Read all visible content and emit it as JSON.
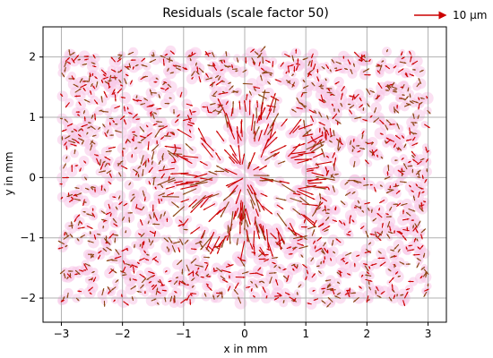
{
  "chart_data": {
    "type": "quiver",
    "title": "Residuals (scale factor 50)",
    "xlabel": "x in mm",
    "ylabel": "y in mm",
    "xlim": [
      -3.3,
      3.3
    ],
    "ylim": [
      -2.4,
      2.5
    ],
    "xticks": [
      -3,
      -2,
      -1,
      0,
      1,
      2,
      3
    ],
    "yticks": [
      -2,
      -1,
      0,
      1,
      2
    ],
    "grid": true,
    "legend": {
      "position": "top-right",
      "label": "10 µm"
    },
    "scale_factor": 50,
    "field": {
      "x_range": [
        -3.0,
        3.0
      ],
      "y_range": [
        -2.1,
        2.1
      ],
      "radial_center": [
        0,
        0
      ],
      "radial_radius_mm": 1.0,
      "description_free": true
    },
    "colors": {
      "arrow": "#cc0000",
      "arrow_dark": "#8b4513",
      "halo": "#f7c6e8",
      "grid": "#b0b0b0",
      "axes": "#000000"
    }
  }
}
